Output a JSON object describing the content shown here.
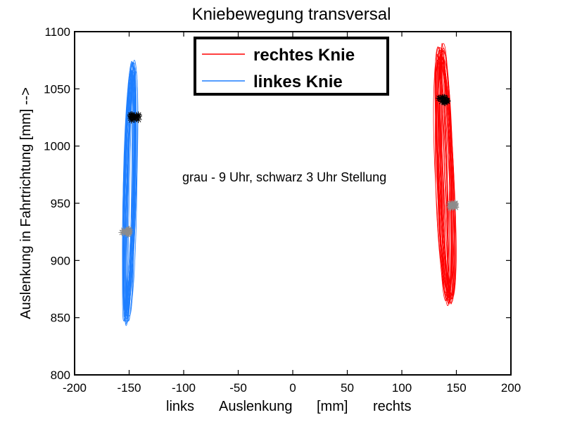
{
  "chart_data": {
    "type": "line",
    "title": "Kniebewegung transversal",
    "ylabel": "Auslenkung in Fahrtrichtung [mm] -->",
    "xlabel_parts": [
      "links",
      "Auslenkung",
      "[mm]",
      "rechts"
    ],
    "xlim": [
      -200,
      200
    ],
    "ylim": [
      800,
      1100
    ],
    "xticks": [
      -200,
      -150,
      -100,
      -50,
      0,
      50,
      100,
      150,
      200
    ],
    "yticks": [
      800,
      850,
      900,
      950,
      1000,
      1050,
      1100
    ],
    "grid": false,
    "legend_position": "top-center",
    "annotation": "grau - 9 Uhr, schwarz 3 Uhr Stellung",
    "series": [
      {
        "name": "rechtes Knie",
        "color": "#ff0000",
        "x_range": [
          128,
          151
        ],
        "y_range": [
          857,
          1091
        ],
        "marker_gray": {
          "x": 146,
          "y": 948
        },
        "marker_black": {
          "x": 138,
          "y": 1040
        }
      },
      {
        "name": "linkes Knie",
        "color": "#1f7fff",
        "x_range": [
          -158,
          -141
        ],
        "y_range": [
          842,
          1076
        ],
        "marker_gray": {
          "x": -153,
          "y": 925
        },
        "marker_black": {
          "x": -145,
          "y": 1025
        }
      }
    ],
    "marker_colors": {
      "gray": "#8c8c8c",
      "black": "#000000"
    }
  }
}
